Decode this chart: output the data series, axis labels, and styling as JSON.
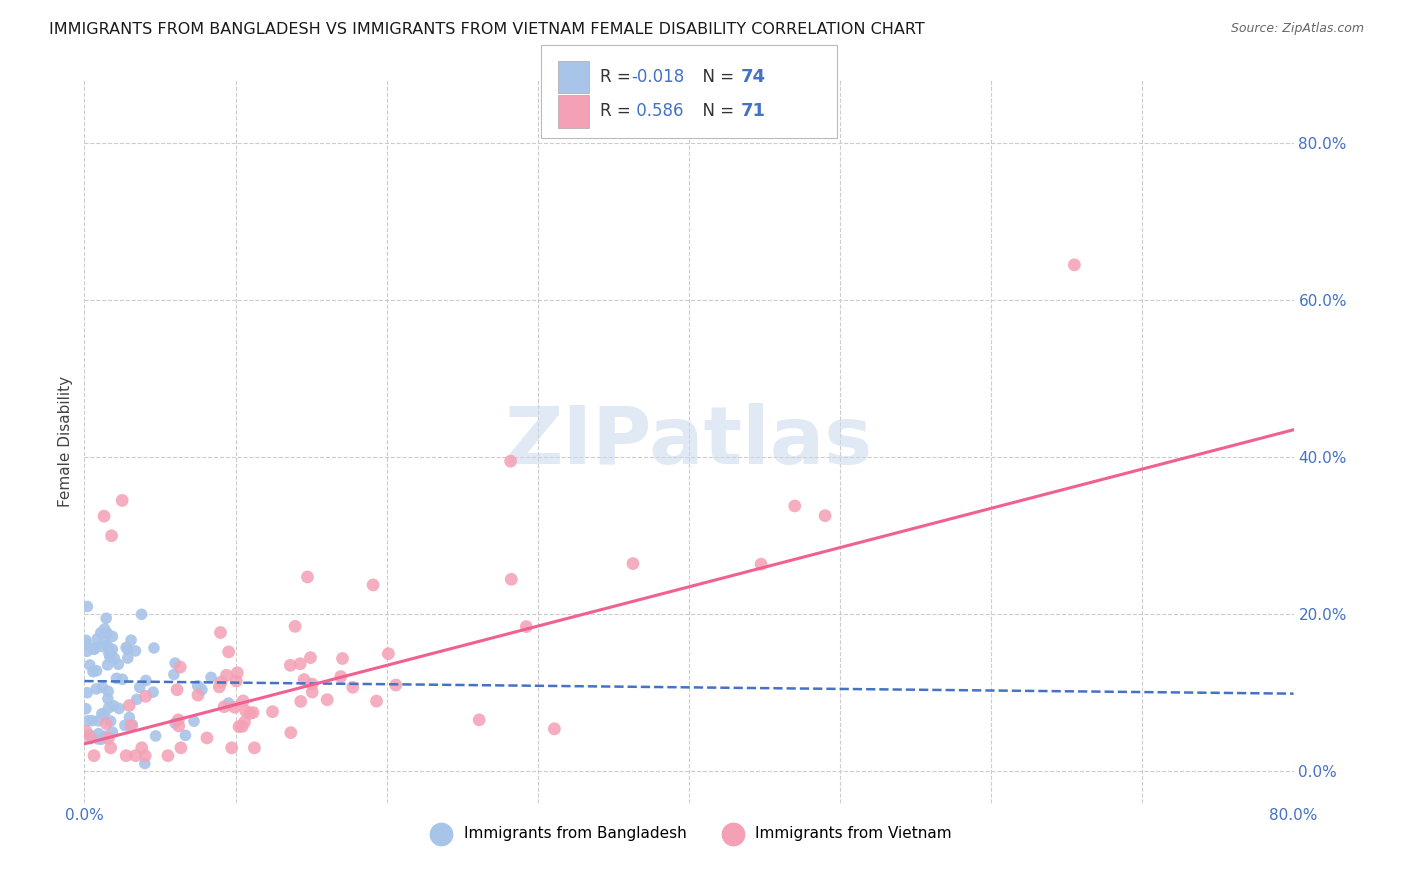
{
  "title": "IMMIGRANTS FROM BANGLADESH VS IMMIGRANTS FROM VIETNAM FEMALE DISABILITY CORRELATION CHART",
  "source": "Source: ZipAtlas.com",
  "ylabel": "Female Disability",
  "legend_label1": "Immigrants from Bangladesh",
  "legend_label2": "Immigrants from Vietnam",
  "r1": "-0.018",
  "n1": "74",
  "r2": "0.586",
  "n2": "71",
  "color_bangladesh": "#a8c4e8",
  "color_vietnam": "#f4a0b5",
  "color_bangladesh_line": "#4472C4",
  "color_vietnam_line": "#f06090",
  "color_tick": "#4472C4",
  "xlim": [
    0.0,
    0.8
  ],
  "ylim": [
    -0.04,
    0.88
  ],
  "watermark_text": "ZIPatlas",
  "grid_color": "#cccccc",
  "yticks": [
    0.0,
    0.2,
    0.4,
    0.6,
    0.8
  ],
  "bd_line_intercept": 0.115,
  "bd_line_slope": -0.02,
  "vn_line_intercept": 0.035,
  "vn_line_slope": 0.5
}
